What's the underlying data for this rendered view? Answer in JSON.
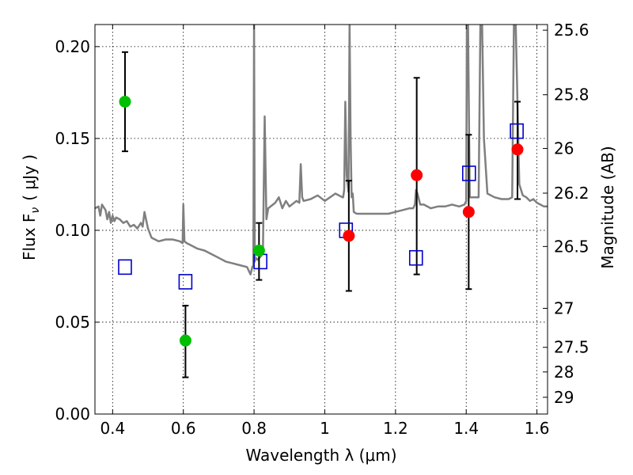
{
  "chart_data": {
    "type": "scatter",
    "xlabel": "Wavelength  λ (μm)",
    "ylabel": "Flux  F",
    "ylabel_subscript": "ν",
    "ylabel_units": "( μJy )",
    "y2label": "Magnitude (AB)",
    "xlim": [
      0.35,
      1.63
    ],
    "ylim": [
      0.0,
      0.212
    ],
    "grid": true,
    "x_ticks": [
      0.4,
      0.6,
      0.8,
      1.0,
      1.2,
      1.4,
      1.6
    ],
    "x_tick_labels": [
      "0.4",
      "0.6",
      "0.8",
      "1",
      "1.2",
      "1.4",
      "1.6"
    ],
    "y_ticks": [
      0.0,
      0.05,
      0.1,
      0.15,
      0.2
    ],
    "y_tick_labels": [
      "0.00",
      "0.05",
      "0.10",
      "0.15",
      "0.20"
    ],
    "mag_ticks": [
      25.6,
      25.8,
      26,
      26.2,
      26.5,
      27,
      27.5,
      28,
      29
    ],
    "mag_tick_labels": [
      "25.6",
      "25.8",
      "26",
      "26.2",
      "26.5",
      "27",
      "27.5",
      "28",
      "29"
    ],
    "colors": {
      "spectrum": "#7f7f7f",
      "green_points": "#00bf00",
      "red_points": "#ff0000",
      "model_squares": "#0000cc",
      "errorbars": "#000000"
    },
    "series": [
      {
        "kind": "points_green",
        "x": [
          0.435,
          0.606,
          0.814
        ],
        "y": [
          0.17,
          0.04,
          0.089
        ],
        "yerr_low": [
          0.143,
          0.02,
          0.073
        ],
        "yerr_high": [
          0.197,
          0.059,
          0.104
        ]
      },
      {
        "kind": "points_red",
        "x": [
          1.068,
          1.26,
          1.407,
          1.545
        ],
        "y": [
          0.097,
          0.13,
          0.11,
          0.144
        ],
        "yerr_low": [
          0.067,
          0.076,
          0.068,
          0.117
        ],
        "yerr_high": [
          0.127,
          0.183,
          0.152,
          0.17
        ]
      },
      {
        "kind": "model_squares",
        "x": [
          0.435,
          0.606,
          0.818,
          1.06,
          1.258,
          1.408,
          1.543
        ],
        "y": [
          0.08,
          0.072,
          0.083,
          0.1,
          0.085,
          0.131,
          0.154
        ]
      },
      {
        "kind": "spectrum_line",
        "x": [
          0.35,
          0.36,
          0.365,
          0.37,
          0.38,
          0.385,
          0.39,
          0.395,
          0.4,
          0.405,
          0.41,
          0.42,
          0.43,
          0.44,
          0.45,
          0.46,
          0.47,
          0.48,
          0.485,
          0.49,
          0.5,
          0.51,
          0.52,
          0.53,
          0.55,
          0.57,
          0.59,
          0.598,
          0.6,
          0.603,
          0.61,
          0.62,
          0.64,
          0.66,
          0.68,
          0.7,
          0.72,
          0.74,
          0.76,
          0.78,
          0.785,
          0.79,
          0.795,
          0.798,
          0.8,
          0.802,
          0.805,
          0.81,
          0.82,
          0.825,
          0.83,
          0.835,
          0.84,
          0.86,
          0.87,
          0.88,
          0.89,
          0.9,
          0.92,
          0.928,
          0.932,
          0.936,
          0.94,
          0.96,
          0.98,
          1.0,
          1.03,
          1.05,
          1.052,
          1.055,
          1.058,
          1.062,
          1.067,
          1.07,
          1.073,
          1.076,
          1.079,
          1.082,
          1.09,
          1.1,
          1.12,
          1.15,
          1.18,
          1.2,
          1.22,
          1.24,
          1.25,
          1.255,
          1.258,
          1.262,
          1.27,
          1.28,
          1.3,
          1.32,
          1.34,
          1.36,
          1.38,
          1.395,
          1.4,
          1.402,
          1.405,
          1.41,
          1.42,
          1.435,
          1.44,
          1.445,
          1.45,
          1.46,
          1.48,
          1.5,
          1.52,
          1.53,
          1.535,
          1.54,
          1.55,
          1.56,
          1.57,
          1.58,
          1.59,
          1.6,
          1.62,
          1.63
        ],
        "y": [
          0.112,
          0.113,
          0.108,
          0.114,
          0.111,
          0.106,
          0.11,
          0.104,
          0.108,
          0.105,
          0.107,
          0.106,
          0.104,
          0.105,
          0.102,
          0.103,
          0.101,
          0.104,
          0.102,
          0.11,
          0.101,
          0.096,
          0.095,
          0.094,
          0.095,
          0.095,
          0.094,
          0.093,
          0.114,
          0.094,
          0.093,
          0.092,
          0.09,
          0.089,
          0.087,
          0.085,
          0.083,
          0.082,
          0.081,
          0.08,
          0.078,
          0.076,
          0.08,
          0.081,
          0.212,
          0.083,
          0.085,
          0.084,
          0.086,
          0.088,
          0.162,
          0.106,
          0.112,
          0.115,
          0.118,
          0.112,
          0.116,
          0.113,
          0.116,
          0.115,
          0.136,
          0.118,
          0.116,
          0.117,
          0.119,
          0.116,
          0.12,
          0.118,
          0.118,
          0.122,
          0.17,
          0.13,
          0.121,
          0.212,
          0.15,
          0.118,
          0.12,
          0.11,
          0.109,
          0.109,
          0.109,
          0.109,
          0.109,
          0.11,
          0.111,
          0.112,
          0.112,
          0.114,
          0.122,
          0.12,
          0.114,
          0.114,
          0.112,
          0.113,
          0.113,
          0.114,
          0.113,
          0.114,
          0.116,
          0.212,
          0.212,
          0.118,
          0.118,
          0.118,
          0.212,
          0.212,
          0.15,
          0.12,
          0.118,
          0.117,
          0.117,
          0.118,
          0.212,
          0.212,
          0.125,
          0.119,
          0.118,
          0.116,
          0.117,
          0.115,
          0.113,
          0.113
        ]
      }
    ]
  }
}
